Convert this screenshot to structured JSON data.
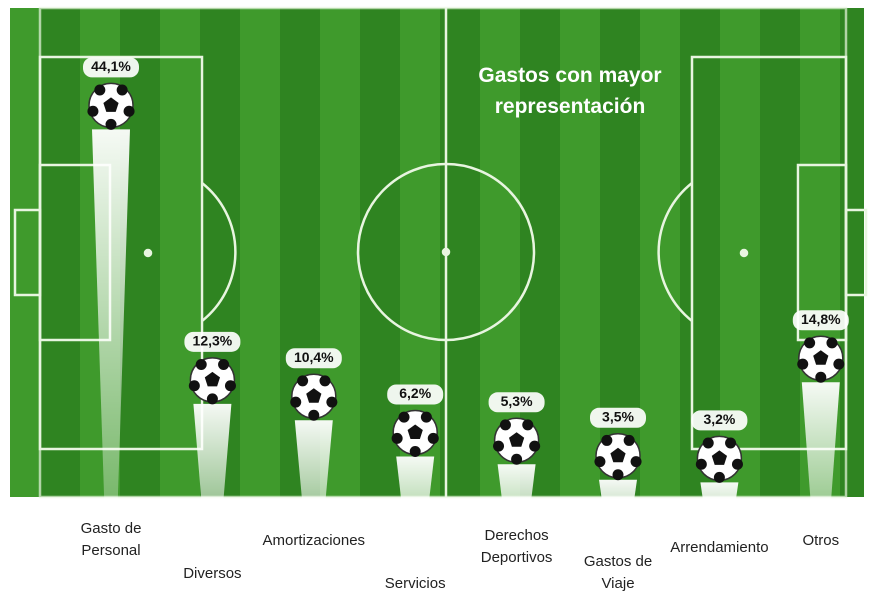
{
  "chart_data": {
    "type": "bar",
    "title": "Gastos  con mayor representación",
    "categories": [
      "Gasto de Personal",
      "Diversos",
      "Amortizaciones",
      "Servicios",
      "Derechos Deportivos",
      "Gastos de Viaje",
      "Arrendamiento",
      "Otros"
    ],
    "values": [
      44.1,
      12.3,
      10.4,
      6.2,
      5.3,
      3.5,
      3.2,
      14.8
    ],
    "value_labels": [
      "44,1%",
      "12,3%",
      "10,4%",
      "6,2%",
      "5,3%",
      "3,5%",
      "3,2%",
      "14,8%"
    ],
    "color": "#ffffff"
  }
}
